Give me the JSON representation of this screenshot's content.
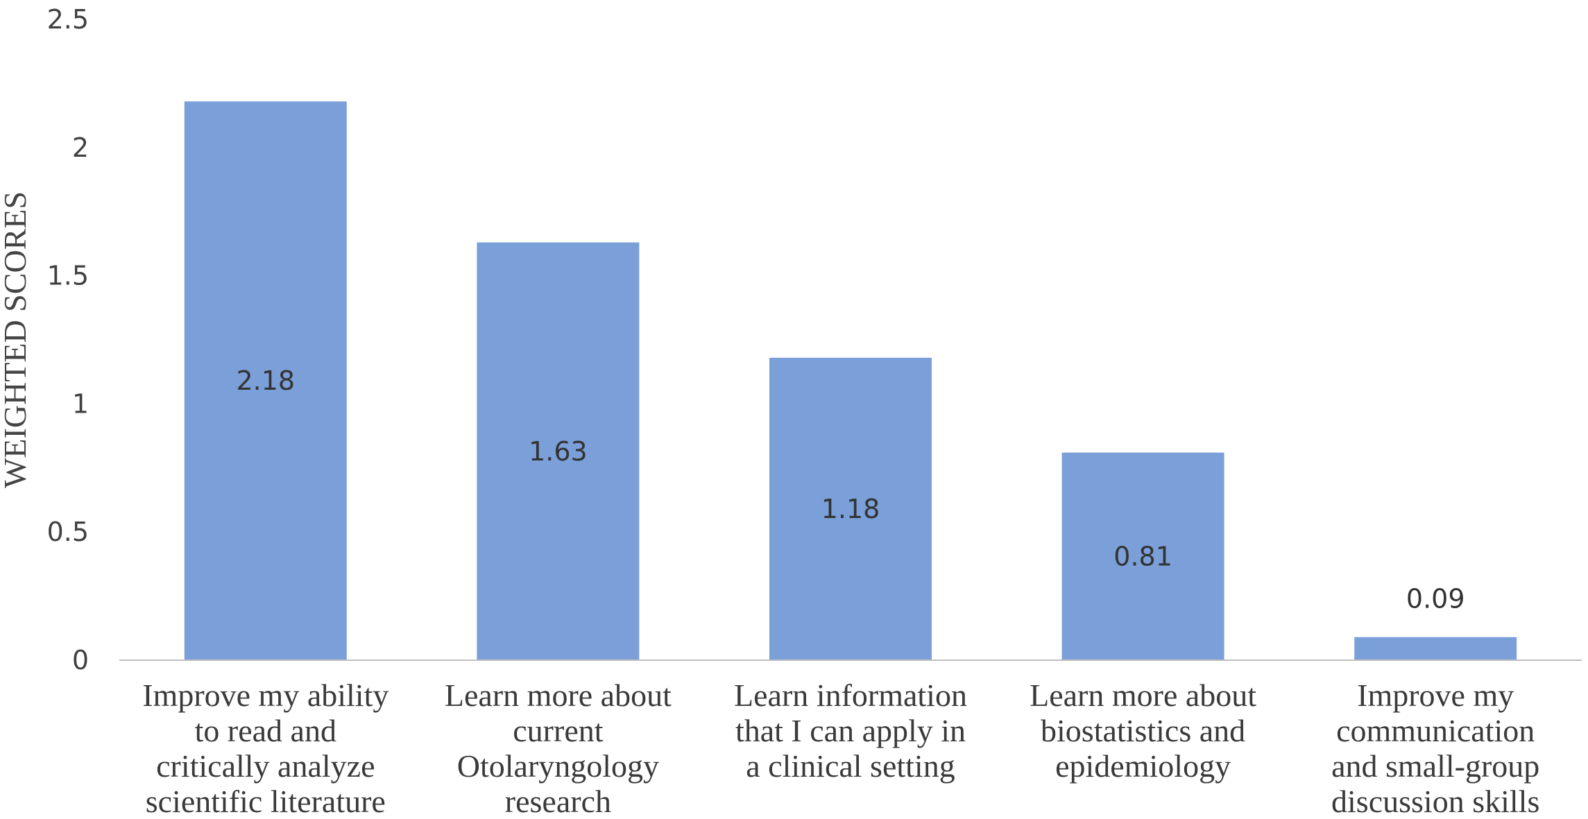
{
  "chart_data": {
    "type": "bar",
    "title": "",
    "xlabel": "",
    "ylabel": "WEIGHTED SCORES",
    "ylim": [
      0,
      2.5
    ],
    "yticks": [
      "0",
      "0.5",
      "1",
      "1.5",
      "2",
      "2.5"
    ],
    "grid": false,
    "legend": "none",
    "categories": [
      [
        "Improve my ability",
        "to read and",
        "critically analyze",
        "scientific literature"
      ],
      [
        "Learn more about",
        "current",
        "Otolaryngology",
        "research"
      ],
      [
        "Learn information",
        "that I can apply in",
        "a clinical setting"
      ],
      [
        "Learn more about",
        "biostatistics and",
        "epidemiology"
      ],
      [
        "Improve my",
        "communication",
        "and small-group",
        "discussion skills"
      ]
    ],
    "values": [
      2.18,
      1.63,
      1.18,
      0.81,
      0.09
    ],
    "data_labels": [
      "2.18",
      "1.63",
      "1.18",
      "0.81",
      "0.09"
    ],
    "bar_color": "#7b9fd8",
    "axis_color": "#bfbfbf"
  }
}
